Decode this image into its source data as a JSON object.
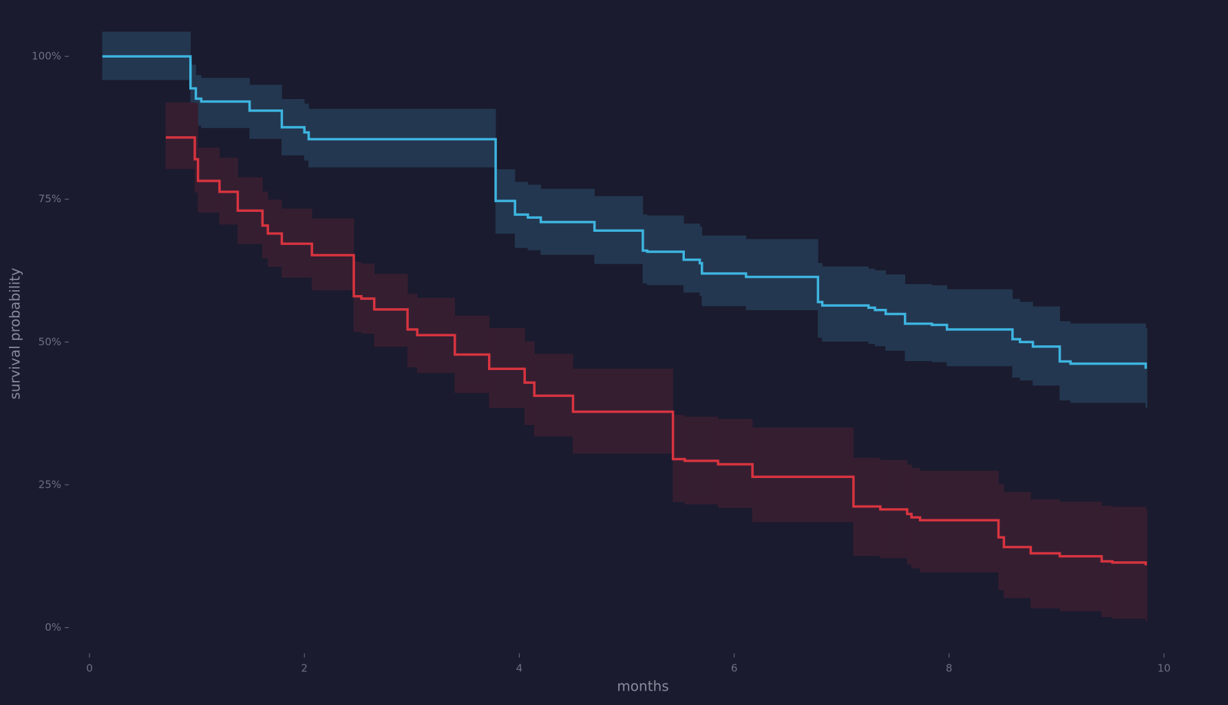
{
  "chart_data": {
    "type": "step",
    "xlabel": "months",
    "ylabel": "survival probability",
    "xlim": [
      0,
      10
    ],
    "ylim": [
      0,
      100
    ],
    "xticks": [
      0,
      2,
      4,
      6,
      8,
      10
    ],
    "yticks": [
      {
        "value": 0,
        "label": "0%"
      },
      {
        "value": 25,
        "label": "25%"
      },
      {
        "value": 50,
        "label": "50%"
      },
      {
        "value": 75,
        "label": "75%"
      },
      {
        "value": 100,
        "label": "100%"
      }
    ],
    "series": [
      {
        "color": "#3db5e0",
        "band_color": "#243750",
        "x": [
          0.12,
          0.94,
          0.99,
          1.04,
          1.49,
          1.79,
          2.0,
          2.04,
          3.78,
          3.96,
          4.08,
          4.2,
          4.7,
          5.15,
          5.19,
          5.53,
          5.68,
          5.7,
          6.11,
          6.78,
          6.82,
          7.25,
          7.31,
          7.41,
          7.59,
          7.84,
          7.98,
          8.59,
          8.66,
          8.78,
          9.03,
          9.13,
          9.83
        ],
        "values": [
          100,
          94.4,
          92.6,
          92.1,
          90.5,
          87.6,
          86.7,
          85.5,
          74.7,
          72.3,
          71.8,
          71.0,
          69.5,
          66.0,
          65.8,
          64.4,
          63.8,
          62.0,
          61.4,
          57.0,
          56.4,
          56.0,
          55.6,
          54.9,
          53.2,
          53.0,
          52.2,
          50.5,
          50.0,
          49.2,
          46.6,
          46.2,
          45.3
        ],
        "upper": [
          104.3,
          98.5,
          96.7,
          96.2,
          95.0,
          92.5,
          91.7,
          90.8,
          80.2,
          78.0,
          77.5,
          76.8,
          75.5,
          72.3,
          72.1,
          70.7,
          70.2,
          68.6,
          68.0,
          63.8,
          63.2,
          62.8,
          62.5,
          61.8,
          60.1,
          59.9,
          59.2,
          57.5,
          57.0,
          56.2,
          53.6,
          53.2,
          52.4
        ],
        "lower": [
          95.9,
          89.8,
          87.9,
          87.5,
          85.6,
          82.7,
          81.8,
          80.6,
          69.0,
          66.5,
          66.1,
          65.3,
          63.7,
          60.3,
          60.0,
          58.7,
          58.1,
          56.3,
          55.6,
          50.8,
          50.1,
          49.7,
          49.3,
          48.5,
          46.7,
          46.5,
          45.8,
          43.8,
          43.3,
          42.4,
          39.8,
          39.4,
          38.5
        ]
      },
      {
        "color": "#d8343f",
        "band_color": "#361e31",
        "x": [
          0.71,
          0.98,
          1.01,
          1.21,
          1.38,
          1.61,
          1.66,
          1.79,
          2.07,
          2.46,
          2.53,
          2.65,
          2.96,
          3.05,
          3.4,
          3.72,
          4.05,
          4.14,
          4.5,
          5.43,
          5.54,
          5.85,
          6.17,
          7.11,
          7.36,
          7.61,
          7.65,
          7.73,
          8.46,
          8.51,
          8.76,
          9.03,
          9.42,
          9.52,
          9.83
        ],
        "values": [
          85.8,
          82,
          78.2,
          76.3,
          73,
          70.4,
          69,
          67.2,
          65.2,
          58,
          57.6,
          55.7,
          52.2,
          51.2,
          47.8,
          45.3,
          42.9,
          40.6,
          37.8,
          29.5,
          29.2,
          28.6,
          26.4,
          21.2,
          20.7,
          19.9,
          19.3,
          18.8,
          15.8,
          14.1,
          13,
          12.5,
          11.6,
          11.4,
          10.9
        ],
        "upper": [
          91.9,
          91.8,
          84.0,
          82.2,
          78.8,
          76.3,
          74.9,
          73.3,
          71.6,
          64.0,
          63.7,
          61.9,
          58.4,
          57.7,
          54.6,
          52.4,
          50.1,
          47.9,
          45.3,
          37.2,
          36.9,
          36.5,
          35.0,
          29.7,
          29.3,
          28.5,
          27.9,
          27.4,
          25.1,
          23.7,
          22.4,
          22.0,
          21.3,
          21.1,
          20.7
        ],
        "lower": [
          80.3,
          76.2,
          72.7,
          70.6,
          67.2,
          64.7,
          63.2,
          61.3,
          59.1,
          51.8,
          51.5,
          49.2,
          45.6,
          44.6,
          41.1,
          38.5,
          35.5,
          33.5,
          30.5,
          22.0,
          21.6,
          21.0,
          18.5,
          12.6,
          12.2,
          11.1,
          10.4,
          9.7,
          6.6,
          5.2,
          3.4,
          2.9,
          1.9,
          1.6,
          1.2
        ]
      }
    ]
  }
}
